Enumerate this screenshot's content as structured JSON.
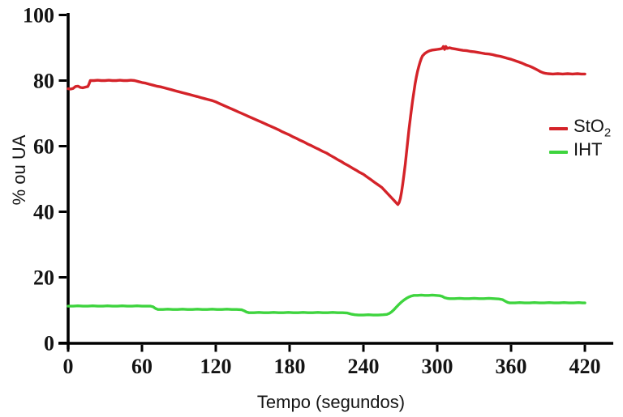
{
  "chart_data": {
    "type": "line",
    "title": "",
    "xlabel": "Tempo (segundos)",
    "ylabel": "% ou UA",
    "xlim": [
      0,
      420
    ],
    "ylim": [
      0,
      100
    ],
    "xticks": [
      0,
      60,
      120,
      180,
      240,
      300,
      360,
      420
    ],
    "yticks": [
      0,
      20,
      40,
      60,
      80,
      100
    ],
    "grid": false,
    "legend_position": "right",
    "background": "#ffffff",
    "axis_color": "#000000",
    "series": [
      {
        "name": "StO2",
        "label": "StO",
        "label_sub": "2",
        "color": "#d42329",
        "points": [
          [
            0,
            77.5
          ],
          [
            2,
            77.4
          ],
          [
            4,
            77.6
          ],
          [
            6,
            78.2
          ],
          [
            8,
            78.3
          ],
          [
            10,
            77.9
          ],
          [
            12,
            77.8
          ],
          [
            14,
            78
          ],
          [
            16,
            78.2
          ],
          [
            17,
            79
          ],
          [
            18,
            80
          ],
          [
            21,
            80
          ],
          [
            24,
            80.1
          ],
          [
            27,
            80
          ],
          [
            30,
            80
          ],
          [
            33,
            80.1
          ],
          [
            36,
            80
          ],
          [
            39,
            80
          ],
          [
            42,
            80.1
          ],
          [
            45,
            80
          ],
          [
            48,
            80
          ],
          [
            51,
            80.1
          ],
          [
            54,
            80
          ],
          [
            57,
            79.7
          ],
          [
            60,
            79.4
          ],
          [
            63,
            79.2
          ],
          [
            66,
            78.9
          ],
          [
            69,
            78.6
          ],
          [
            72,
            78.3
          ],
          [
            75,
            78.1
          ],
          [
            78,
            77.8
          ],
          [
            81,
            77.5
          ],
          [
            84,
            77.2
          ],
          [
            87,
            76.9
          ],
          [
            90,
            76.6
          ],
          [
            93,
            76.3
          ],
          [
            96,
            76
          ],
          [
            99,
            75.7
          ],
          [
            102,
            75.4
          ],
          [
            105,
            75.1
          ],
          [
            108,
            74.8
          ],
          [
            111,
            74.5
          ],
          [
            114,
            74.2
          ],
          [
            117,
            73.9
          ],
          [
            120,
            73.5
          ],
          [
            123,
            73
          ],
          [
            126,
            72.5
          ],
          [
            129,
            72
          ],
          [
            132,
            71.5
          ],
          [
            135,
            71
          ],
          [
            138,
            70.5
          ],
          [
            141,
            70
          ],
          [
            144,
            69.5
          ],
          [
            147,
            69
          ],
          [
            150,
            68.5
          ],
          [
            153,
            68
          ],
          [
            156,
            67.5
          ],
          [
            159,
            67
          ],
          [
            162,
            66.5
          ],
          [
            165,
            66
          ],
          [
            168,
            65.5
          ],
          [
            171,
            65
          ],
          [
            174,
            64.4
          ],
          [
            177,
            63.9
          ],
          [
            180,
            63.4
          ],
          [
            183,
            62.8
          ],
          [
            186,
            62.3
          ],
          [
            189,
            61.7
          ],
          [
            192,
            61.2
          ],
          [
            195,
            60.6
          ],
          [
            198,
            60.1
          ],
          [
            201,
            59.5
          ],
          [
            204,
            59
          ],
          [
            207,
            58.4
          ],
          [
            210,
            57.9
          ],
          [
            213,
            57.2
          ],
          [
            216,
            56.6
          ],
          [
            219,
            55.9
          ],
          [
            222,
            55.3
          ],
          [
            225,
            54.6
          ],
          [
            228,
            54
          ],
          [
            231,
            53.3
          ],
          [
            234,
            52.7
          ],
          [
            237,
            52
          ],
          [
            240,
            51.4
          ],
          [
            243,
            50.6
          ],
          [
            246,
            49.8
          ],
          [
            249,
            49
          ],
          [
            252,
            48.2
          ],
          [
            255,
            47.4
          ],
          [
            257,
            46.6
          ],
          [
            259,
            45.8
          ],
          [
            261,
            45
          ],
          [
            263,
            44.2
          ],
          [
            265,
            43.4
          ],
          [
            267,
            42.6
          ],
          [
            268,
            42.2
          ],
          [
            269,
            42.8
          ],
          [
            270,
            44
          ],
          [
            271,
            46
          ],
          [
            272,
            48.5
          ],
          [
            273,
            51.5
          ],
          [
            274,
            54.5
          ],
          [
            275,
            58
          ],
          [
            276,
            61.5
          ],
          [
            277,
            65
          ],
          [
            278,
            68
          ],
          [
            279,
            71
          ],
          [
            280,
            74
          ],
          [
            281,
            76.5
          ],
          [
            282,
            79
          ],
          [
            283,
            81
          ],
          [
            284,
            82.8
          ],
          [
            285,
            84.3
          ],
          [
            286,
            85.6
          ],
          [
            287,
            86.7
          ],
          [
            288,
            87.5
          ],
          [
            290,
            88.3
          ],
          [
            292,
            88.8
          ],
          [
            294,
            89.1
          ],
          [
            296,
            89.3
          ],
          [
            298,
            89.4
          ],
          [
            300,
            89.5
          ],
          [
            302,
            89.6
          ],
          [
            304,
            89.8
          ],
          [
            305,
            90.4
          ],
          [
            306,
            89.5
          ],
          [
            307,
            90.4
          ],
          [
            308,
            89.8
          ],
          [
            310,
            90
          ],
          [
            312,
            89.8
          ],
          [
            315,
            89.6
          ],
          [
            318,
            89.4
          ],
          [
            321,
            89.2
          ],
          [
            324,
            89.1
          ],
          [
            327,
            88.9
          ],
          [
            330,
            88.8
          ],
          [
            333,
            88.6
          ],
          [
            336,
            88.4
          ],
          [
            339,
            88.2
          ],
          [
            342,
            88.1
          ],
          [
            345,
            87.9
          ],
          [
            348,
            87.6
          ],
          [
            351,
            87.4
          ],
          [
            354,
            87.1
          ],
          [
            357,
            86.8
          ],
          [
            360,
            86.5
          ],
          [
            363,
            86.1
          ],
          [
            366,
            85.7
          ],
          [
            369,
            85.3
          ],
          [
            372,
            84.8
          ],
          [
            375,
            84.4
          ],
          [
            378,
            83.9
          ],
          [
            380,
            83.5
          ],
          [
            382,
            83.1
          ],
          [
            384,
            82.7
          ],
          [
            386,
            82.4
          ],
          [
            388,
            82.2
          ],
          [
            390,
            82.1
          ],
          [
            394,
            82
          ],
          [
            398,
            82.1
          ],
          [
            402,
            82
          ],
          [
            406,
            82.1
          ],
          [
            410,
            82
          ],
          [
            414,
            82.1
          ],
          [
            417,
            82
          ],
          [
            420,
            82
          ]
        ]
      },
      {
        "name": "IHT",
        "label": "IHT",
        "label_sub": "",
        "color": "#3ed43e",
        "points": [
          [
            0,
            11.2
          ],
          [
            4,
            11.2
          ],
          [
            8,
            11.3
          ],
          [
            12,
            11.2
          ],
          [
            16,
            11.2
          ],
          [
            20,
            11.3
          ],
          [
            24,
            11.2
          ],
          [
            28,
            11.2
          ],
          [
            32,
            11.3
          ],
          [
            36,
            11.2
          ],
          [
            40,
            11.2
          ],
          [
            44,
            11.3
          ],
          [
            48,
            11.2
          ],
          [
            52,
            11.2
          ],
          [
            56,
            11.3
          ],
          [
            60,
            11.2
          ],
          [
            64,
            11.2
          ],
          [
            67,
            11.2
          ],
          [
            69,
            11
          ],
          [
            71,
            10.5
          ],
          [
            73,
            10.2
          ],
          [
            77,
            10.2
          ],
          [
            81,
            10.3
          ],
          [
            85,
            10.2
          ],
          [
            89,
            10.2
          ],
          [
            93,
            10.3
          ],
          [
            97,
            10.2
          ],
          [
            101,
            10.2
          ],
          [
            105,
            10.3
          ],
          [
            109,
            10.2
          ],
          [
            113,
            10.2
          ],
          [
            117,
            10.3
          ],
          [
            121,
            10.2
          ],
          [
            125,
            10.2
          ],
          [
            129,
            10.3
          ],
          [
            133,
            10.2
          ],
          [
            137,
            10.2
          ],
          [
            141,
            10.1
          ],
          [
            143,
            9.8
          ],
          [
            145,
            9.4
          ],
          [
            147,
            9.2
          ],
          [
            151,
            9.2
          ],
          [
            155,
            9.3
          ],
          [
            159,
            9.2
          ],
          [
            163,
            9.2
          ],
          [
            167,
            9.3
          ],
          [
            171,
            9.2
          ],
          [
            175,
            9.2
          ],
          [
            179,
            9.3
          ],
          [
            183,
            9.2
          ],
          [
            187,
            9.2
          ],
          [
            191,
            9.3
          ],
          [
            195,
            9.2
          ],
          [
            199,
            9.2
          ],
          [
            203,
            9.3
          ],
          [
            207,
            9.2
          ],
          [
            211,
            9.2
          ],
          [
            215,
            9.3
          ],
          [
            219,
            9.2
          ],
          [
            223,
            9.2
          ],
          [
            227,
            9.1
          ],
          [
            230,
            8.8
          ],
          [
            233,
            8.6
          ],
          [
            236,
            8.5
          ],
          [
            240,
            8.5
          ],
          [
            244,
            8.6
          ],
          [
            248,
            8.5
          ],
          [
            252,
            8.5
          ],
          [
            256,
            8.6
          ],
          [
            259,
            8.7
          ],
          [
            261,
            9
          ],
          [
            263,
            9.5
          ],
          [
            265,
            10.2
          ],
          [
            267,
            11
          ],
          [
            269,
            11.8
          ],
          [
            271,
            12.5
          ],
          [
            273,
            13.1
          ],
          [
            275,
            13.6
          ],
          [
            277,
            14
          ],
          [
            279,
            14.3
          ],
          [
            281,
            14.5
          ],
          [
            284,
            14.5
          ],
          [
            287,
            14.6
          ],
          [
            290,
            14.5
          ],
          [
            293,
            14.5
          ],
          [
            296,
            14.6
          ],
          [
            299,
            14.5
          ],
          [
            302,
            14.4
          ],
          [
            304,
            14.2
          ],
          [
            306,
            13.8
          ],
          [
            308,
            13.6
          ],
          [
            310,
            13.5
          ],
          [
            314,
            13.5
          ],
          [
            318,
            13.6
          ],
          [
            322,
            13.5
          ],
          [
            326,
            13.5
          ],
          [
            330,
            13.6
          ],
          [
            334,
            13.5
          ],
          [
            338,
            13.5
          ],
          [
            342,
            13.6
          ],
          [
            346,
            13.5
          ],
          [
            350,
            13.4
          ],
          [
            353,
            13.2
          ],
          [
            355,
            12.8
          ],
          [
            357,
            12.4
          ],
          [
            359,
            12.2
          ],
          [
            363,
            12.2
          ],
          [
            367,
            12.3
          ],
          [
            371,
            12.2
          ],
          [
            375,
            12.2
          ],
          [
            379,
            12.3
          ],
          [
            383,
            12.2
          ],
          [
            387,
            12.2
          ],
          [
            391,
            12.3
          ],
          [
            395,
            12.2
          ],
          [
            399,
            12.2
          ],
          [
            403,
            12.3
          ],
          [
            407,
            12.2
          ],
          [
            411,
            12.2
          ],
          [
            415,
            12.3
          ],
          [
            418,
            12.2
          ],
          [
            420,
            12.2
          ]
        ]
      }
    ]
  }
}
